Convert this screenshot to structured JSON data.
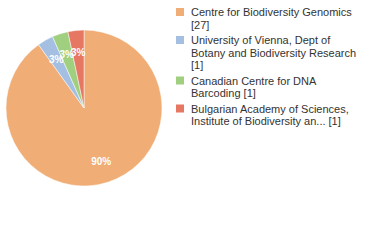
{
  "chart_data": {
    "type": "pie",
    "categories": [
      "Centre for Biodiversity Genomics [27]",
      "University of Vienna, Dept of Botany and Biodiversity Research [1]",
      "Canadian Centre for DNA Barcoding [1]",
      "Bulgarian Academy of Sciences, Institute of Biodiversity an... [1]"
    ],
    "values": [
      90,
      3.3,
      3.3,
      3.3
    ],
    "value_labels": [
      "90%",
      "3%",
      "3%",
      "3%"
    ],
    "colors": [
      "#f0ad75",
      "#a4bfe2",
      "#a0d07f",
      "#e67762"
    ],
    "data_labels": true,
    "legend": "right"
  }
}
